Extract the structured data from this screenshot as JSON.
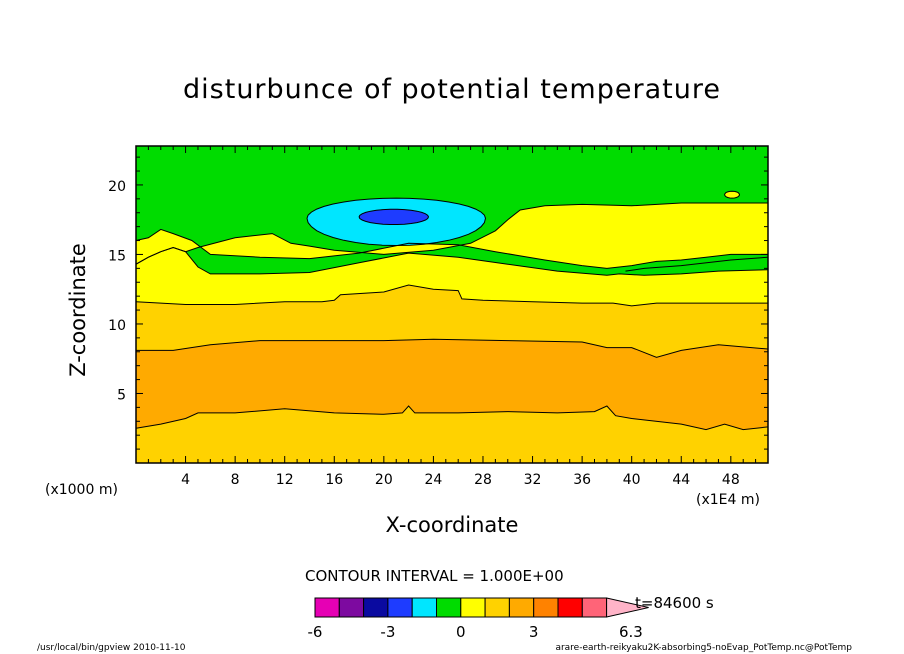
{
  "title": "disturbunce of potential temperature",
  "chart_data": {
    "type": "contour",
    "title": "disturbunce of potential temperature",
    "xlabel": "X-coordinate",
    "ylabel": "Z-coordinate",
    "x_multiplier": "(x1E4 m)",
    "y_multiplier": "(x1000 m)",
    "xlim": [
      0,
      51
    ],
    "ylim": [
      0,
      22.8
    ],
    "x_ticks": [
      "4",
      "8",
      "12",
      "16",
      "20",
      "24",
      "28",
      "32",
      "36",
      "40",
      "44",
      "48"
    ],
    "y_ticks": [
      "5",
      "10",
      "15",
      "20"
    ],
    "contour_interval": "CONTOUR INTERVAL = 1.000E+00",
    "time_label": "t=84600 s",
    "colorbar": {
      "labels": [
        "-6",
        "-3",
        "0",
        "3",
        "6.3"
      ],
      "levels": [
        -6,
        -5,
        -4,
        -3,
        -2,
        -1,
        0,
        1,
        2,
        3,
        4,
        5,
        6,
        6.3
      ],
      "colors": [
        "#e600b4",
        "#7d0aa0",
        "#0a0aa0",
        "#1e3cff",
        "#00e6ff",
        "#00dc00",
        "#ffff00",
        "#ffd200",
        "#ffaa00",
        "#ff8200",
        "#ff0000",
        "#ff6478",
        "#ffb4c8"
      ]
    },
    "regions": [
      {
        "value_range": [
          2,
          3
        ],
        "color": "#ffd200",
        "description_level": "lowest layer"
      },
      {
        "value_range": [
          3,
          4
        ],
        "color": "#ffaa00",
        "z_range": [
          3.5,
          8.5
        ]
      },
      {
        "value_range": [
          2,
          3
        ],
        "color": "#ffd200",
        "z_range": [
          8.5,
          12
        ]
      },
      {
        "value_range": [
          1,
          2
        ],
        "color": "#ffff00",
        "z_range": [
          12,
          15
        ]
      },
      {
        "value_range": [
          0,
          1
        ],
        "color": "#00dc00",
        "z_range": [
          15,
          22.8
        ]
      },
      {
        "value_range": [
          -1,
          0
        ],
        "color": "#00e6ff",
        "center": [
          21,
          17.3
        ]
      },
      {
        "value_range": [
          -2,
          -1
        ],
        "color": "#1e3cff",
        "center": [
          21,
          17.7
        ]
      }
    ]
  },
  "footer": {
    "left": "/usr/local/bin/gpview  2010-11-10",
    "right": "arare-earth-reikyaku2K-absorbing5-noEvap_PotTemp.nc@PotTemp"
  }
}
